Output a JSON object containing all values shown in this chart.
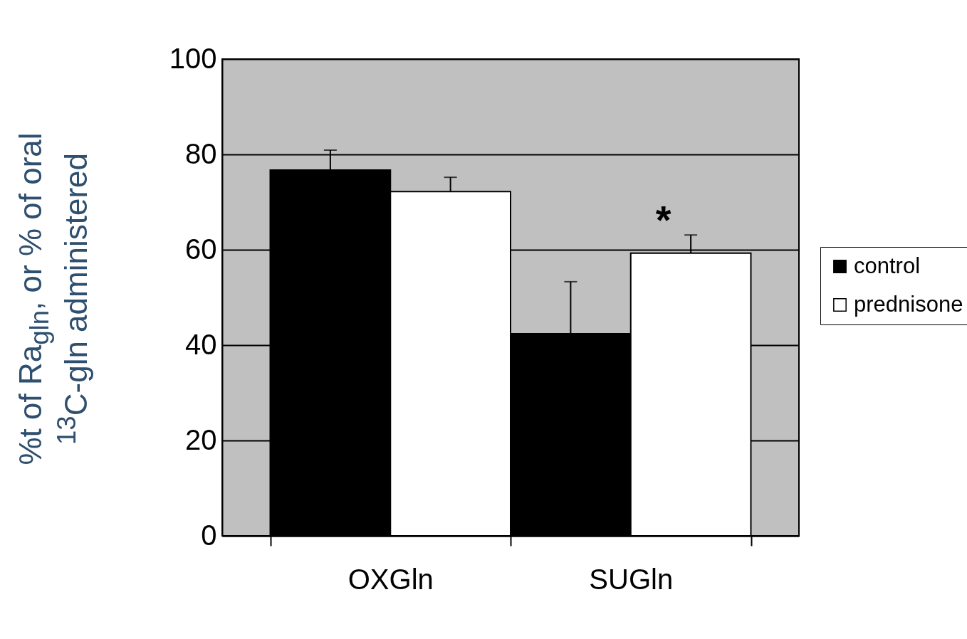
{
  "chart_data": {
    "type": "bar",
    "ylabel": "%t of  Ra$_{gln}$, or % of oral\n$^{13}$C-gln administered",
    "categories": [
      "OXGln",
      "SUGln"
    ],
    "series": [
      {
        "name": "control",
        "color": "#000000",
        "values": [
          76.7,
          42.4
        ],
        "errors": [
          [
            76.7,
            80.9
          ],
          [
            42.4,
            53.3
          ]
        ]
      },
      {
        "name": "prednisone",
        "color": "#ffffff",
        "values": [
          72.2,
          59.3
        ],
        "errors": [
          [
            72.2,
            75.2
          ],
          [
            59.3,
            63.1
          ]
        ]
      }
    ],
    "ylim": [
      0,
      100
    ],
    "yticks": [
      0,
      20,
      40,
      60,
      80,
      100
    ],
    "grid": "y",
    "legend": "right",
    "annotations": [
      "*"
    ]
  }
}
